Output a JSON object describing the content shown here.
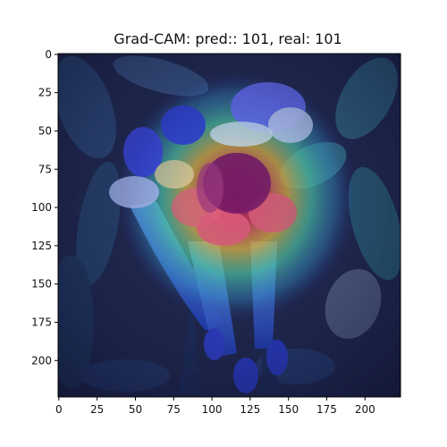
{
  "title": "Grad-CAM: pred:: 101, real: 101",
  "axes": {
    "x_ticks": [
      "0",
      "25",
      "50",
      "75",
      "100",
      "125",
      "150",
      "175",
      "200"
    ],
    "y_ticks": [
      "0",
      "25",
      "50",
      "75",
      "100",
      "125",
      "150",
      "175",
      "200"
    ],
    "x_range": [
      0,
      224
    ],
    "y_range": [
      0,
      224
    ]
  },
  "image": {
    "subject": "flower-with-gradcam-heatmap-overlay",
    "heatmap_colormap": "jet",
    "colors": {
      "background_dark": "#1e2547",
      "leaf_teal": "#3a8a8e",
      "heat_hot": "#cc3366",
      "heat_warm": "#d6b340",
      "heat_mid": "#4fd1a8",
      "petal_blue": "#5b6cff"
    }
  }
}
